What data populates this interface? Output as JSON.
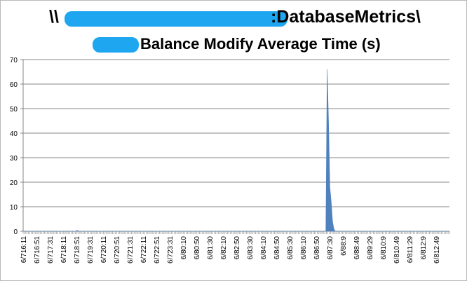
{
  "chart_data": {
    "type": "area",
    "title_parts": {
      "line1_prefix": "\\\\",
      "line1_suffix": ":DatabaseMetrics\\",
      "line2_suffix": "Balance Modify Average Time (s)"
    },
    "ylim": [
      0,
      70
    ],
    "yticks": [
      0,
      10,
      20,
      30,
      40,
      50,
      60,
      70
    ],
    "grid": "horizontal",
    "legend": "none",
    "series_color": "#4f81bd",
    "x_labels": [
      "6/716:11",
      "6/716:51",
      "6/717:31",
      "6/718:11",
      "6/718:51",
      "6/719:31",
      "6/720:11",
      "6/720:51",
      "6/721:31",
      "6/722:11",
      "6/722:51",
      "6/723:31",
      "6/80:10",
      "6/80:50",
      "6/81:30",
      "6/82:10",
      "6/82:50",
      "6/83:30",
      "6/84:10",
      "6/84:50",
      "6/85:30",
      "6/86:10",
      "6/86:50",
      "6/87:30",
      "6/88:9",
      "6/88:49",
      "6/89:29",
      "6/810:9",
      "6/810:49",
      "6/811:29",
      "6/812:9",
      "6/812:49"
    ],
    "series": [
      {
        "values": [
          0,
          0,
          0,
          0,
          0,
          0,
          0,
          0,
          0,
          0,
          0,
          0,
          0,
          0,
          0,
          0,
          0,
          0,
          0,
          0,
          0,
          0,
          0,
          0,
          0,
          0,
          0,
          0,
          0,
          0,
          0,
          0,
          0,
          0,
          0,
          0,
          0,
          0,
          0,
          0,
          0.4,
          0,
          0,
          0,
          0,
          0,
          0,
          0,
          0,
          0,
          0,
          0,
          0,
          0,
          0,
          0,
          0,
          0,
          0,
          0,
          0,
          0,
          0,
          0,
          0,
          0,
          0,
          0,
          0,
          0,
          0,
          0,
          0,
          0,
          0,
          0,
          0,
          0,
          0,
          0,
          0,
          0,
          0,
          0,
          0,
          0,
          0,
          0,
          0,
          0,
          0,
          0,
          0,
          0,
          0,
          0,
          0,
          0,
          0,
          0,
          0,
          0,
          0,
          0,
          0,
          0,
          0,
          0,
          0,
          0,
          0,
          0,
          0,
          0,
          0,
          0,
          0,
          0,
          0,
          0,
          0,
          0,
          0,
          0,
          0,
          0,
          0,
          0,
          0,
          0,
          0,
          0,
          0,
          0,
          0,
          0,
          0,
          0,
          0,
          0,
          0,
          0,
          0,
          0,
          0,
          0,
          0,
          0,
          0,
          0,
          0,
          0,
          0,
          0,
          0,
          0,
          0,
          0,
          0,
          0,
          0,
          0,
          0,
          0,
          0,
          0,
          0,
          0,
          0,
          0,
          0,
          0,
          0,
          0,
          0,
          0,
          0,
          0,
          0,
          0,
          0,
          0,
          0,
          0,
          0,
          0,
          0,
          0,
          0,
          0,
          0,
          0,
          0,
          0,
          0,
          0,
          0,
          0,
          0,
          0,
          0,
          0,
          0,
          0,
          0,
          0,
          0,
          0,
          0,
          0,
          0,
          0,
          0,
          0,
          0,
          0,
          0,
          0,
          0,
          0,
          0,
          0,
          0,
          0,
          0,
          0,
          0,
          66,
          45,
          18,
          12,
          4,
          1,
          0,
          0,
          0,
          0,
          0,
          0,
          0,
          0,
          0,
          0,
          0,
          0,
          0,
          0,
          0,
          0,
          0,
          0,
          0,
          0,
          0,
          0,
          0,
          0,
          0,
          0,
          0,
          0,
          0,
          0,
          0,
          0,
          0,
          0,
          0,
          0,
          0,
          0,
          0,
          0,
          0,
          0,
          0,
          0,
          0,
          0,
          0,
          0,
          0,
          0,
          0,
          0,
          0,
          0,
          0,
          0,
          0,
          0,
          0,
          0,
          0,
          0,
          0,
          0,
          0,
          0,
          0,
          0,
          0,
          0,
          0,
          0,
          0,
          0,
          0,
          0,
          0,
          0,
          0,
          0,
          0,
          0,
          0,
          0,
          0,
          0
        ]
      }
    ]
  }
}
